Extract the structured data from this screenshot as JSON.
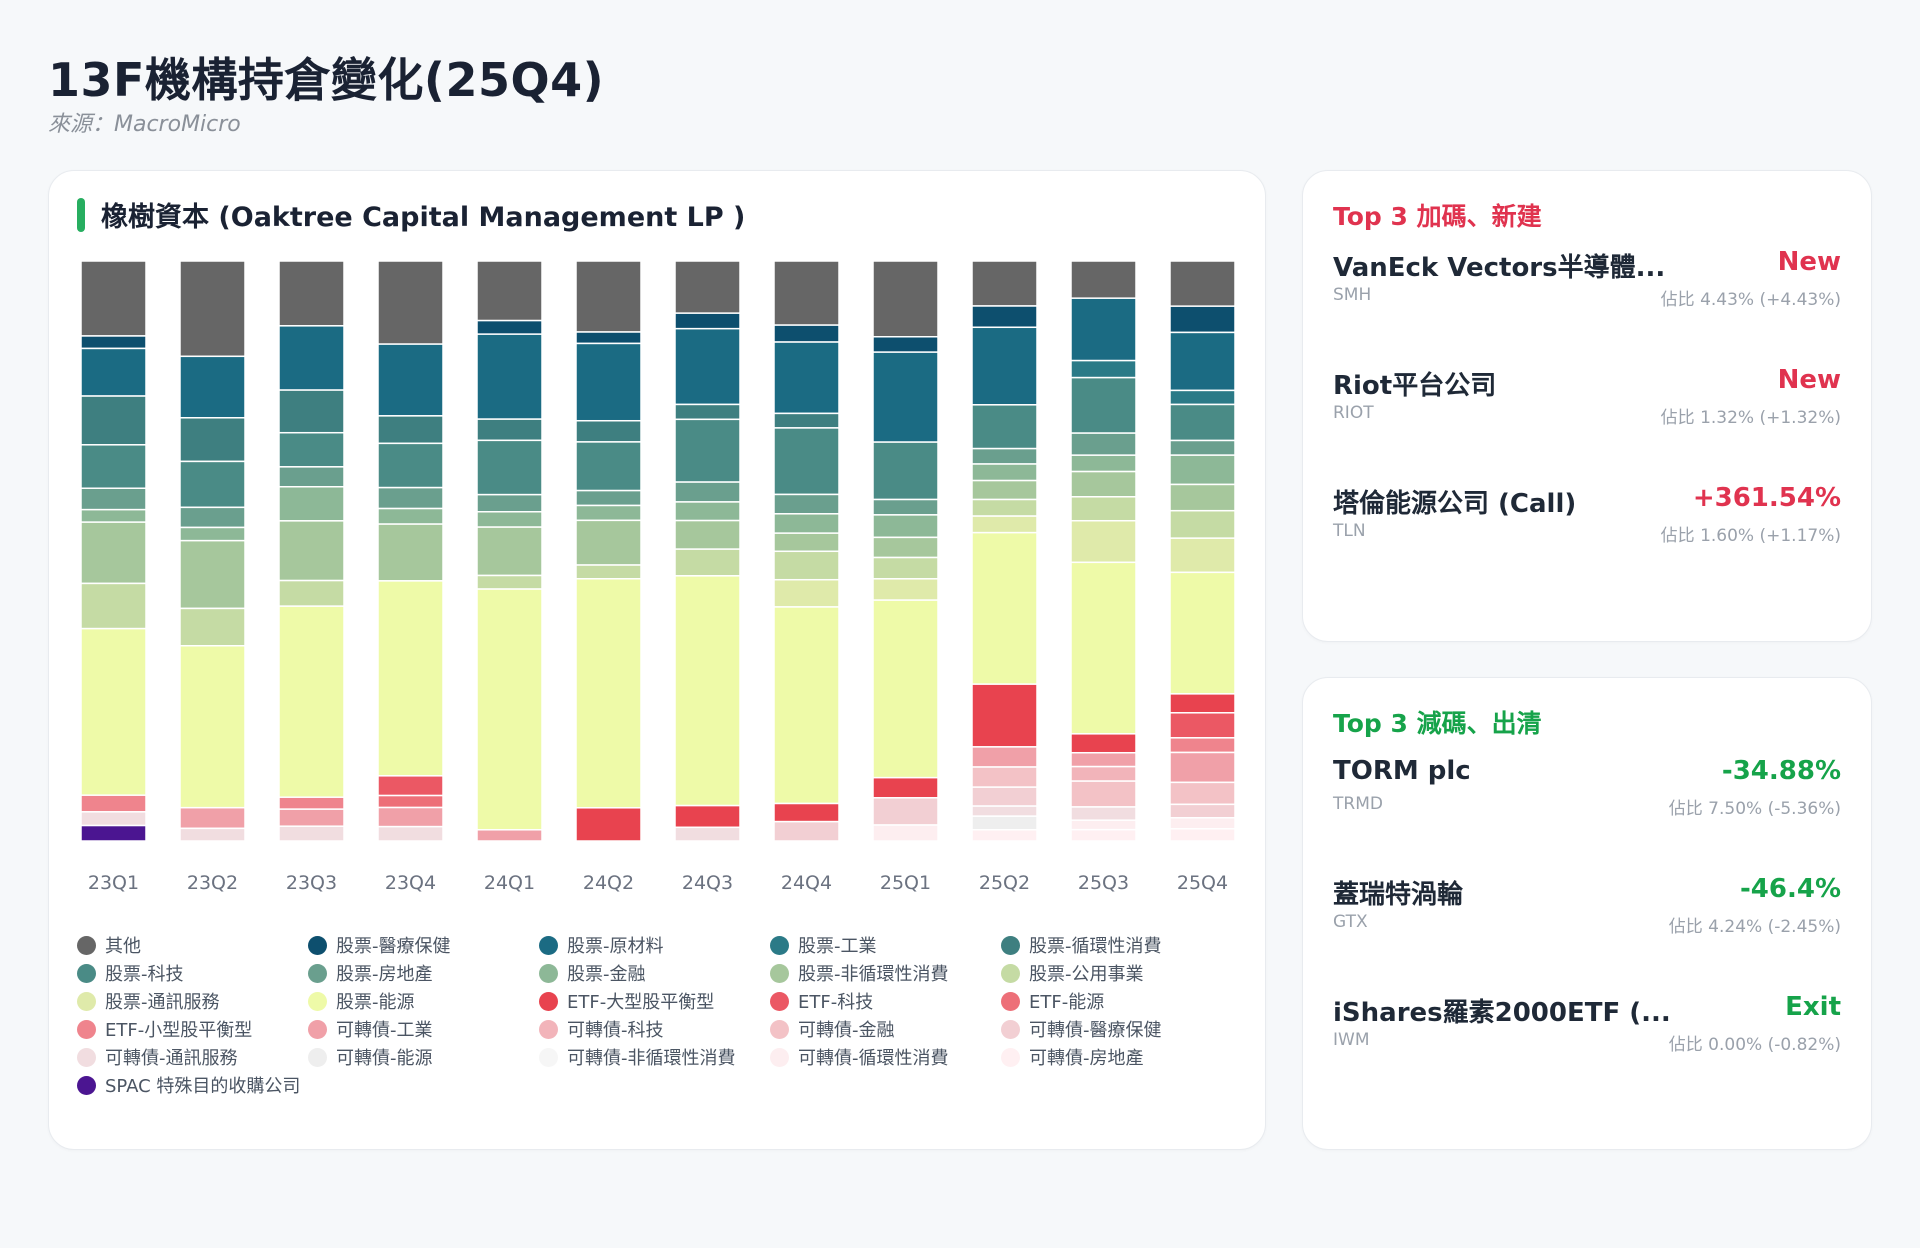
{
  "page": {
    "title": "13F機構持倉變化(25Q4)",
    "source": "來源：MacroMicro"
  },
  "chart_title": "橡樹資本 (Oaktree Capital Management LP )",
  "top_increase": {
    "title": "Top 3 加碼、新建",
    "items": [
      {
        "name": "VanEck Vectors半導體...",
        "ticker": "SMH",
        "change": "New",
        "weight": "佔比 4.43% (+4.43%)"
      },
      {
        "name": "Riot平台公司",
        "ticker": "RIOT",
        "change": "New",
        "weight": "佔比 1.32% (+1.32%)"
      },
      {
        "name": "塔倫能源公司 (Call)",
        "ticker": "TLN",
        "change": "+361.54%",
        "weight": "佔比 1.60% (+1.17%)"
      }
    ]
  },
  "top_decrease": {
    "title": "Top 3 減碼、出清",
    "items": [
      {
        "name": "TORM plc",
        "ticker": "TRMD",
        "change": "-34.88%",
        "weight": "佔比 7.50% (-5.36%)"
      },
      {
        "name": "蓋瑞特渦輪",
        "ticker": "GTX",
        "change": "-46.4%",
        "weight": "佔比 4.24% (-2.45%)"
      },
      {
        "name": "iShares羅素2000ETF (...",
        "ticker": "IWM",
        "change": "Exit",
        "weight": "佔比 0.00% (-0.82%)"
      }
    ]
  },
  "chart_data": {
    "type": "bar",
    "stacked": true,
    "normalized": true,
    "ylim": [
      0,
      100
    ],
    "unit": "%",
    "categories": [
      "23Q1",
      "23Q2",
      "23Q3",
      "23Q4",
      "24Q1",
      "24Q2",
      "24Q3",
      "24Q4",
      "25Q1",
      "25Q2",
      "25Q3",
      "25Q4"
    ],
    "series": [
      {
        "name": "其他",
        "color": "#666666",
        "values": [
          12.6,
          16.6,
          11.4,
          13.9,
          10.1,
          12.4,
          8.4,
          10.6,
          12.8,
          7.6,
          5.9,
          7.4
        ]
      },
      {
        "name": "股票-醫療保健",
        "color": "#0d4f6e",
        "values": [
          2.1,
          0,
          0,
          0,
          2.3,
          2.0,
          2.5,
          2.8,
          2.6,
          3.6,
          0,
          4.3
        ]
      },
      {
        "name": "股票-原材料",
        "color": "#1b6b83",
        "values": [
          8.0,
          10.7,
          11.3,
          12.0,
          14.4,
          13.5,
          12.2,
          11.8,
          15.2,
          13.1,
          9.9,
          9.5
        ]
      },
      {
        "name": "股票-工業",
        "color": "#2b7a87",
        "values": [
          0,
          0,
          0,
          0,
          0,
          0,
          0,
          0,
          0,
          0,
          2.7,
          2.3
        ]
      },
      {
        "name": "股票-循環性消費",
        "color": "#3e7f80",
        "values": [
          8.2,
          7.6,
          7.5,
          4.6,
          3.6,
          3.7,
          2.4,
          2.4,
          0,
          0,
          0,
          0
        ]
      },
      {
        "name": "股票-科技",
        "color": "#4a8b86",
        "values": [
          7.3,
          8.0,
          6.0,
          7.4,
          9.2,
          8.5,
          10.1,
          11.0,
          9.7,
          7.4,
          8.8,
          5.9
        ]
      },
      {
        "name": "股票-房地產",
        "color": "#6a9f8e",
        "values": [
          3.6,
          3.5,
          3.5,
          3.5,
          2.9,
          2.6,
          3.2,
          3.2,
          2.6,
          2.6,
          3.5,
          2.4
        ]
      },
      {
        "name": "股票-金融",
        "color": "#8db897",
        "values": [
          2.1,
          2.3,
          6.0,
          2.6,
          2.6,
          2.6,
          3.0,
          3.2,
          3.8,
          2.8,
          2.6,
          4.8
        ]
      },
      {
        "name": "股票-非循環性消費",
        "color": "#a6c79c",
        "values": [
          10.3,
          11.8,
          10.5,
          9.5,
          8.2,
          7.8,
          4.6,
          3.0,
          3.4,
          3.2,
          4.0,
          4.3
        ]
      },
      {
        "name": "股票-公用事業",
        "color": "#c5dba4",
        "values": [
          7.6,
          6.5,
          4.5,
          0,
          2.3,
          2.4,
          4.3,
          4.7,
          3.6,
          2.8,
          3.8,
          4.5
        ]
      },
      {
        "name": "股票-通訊服務",
        "color": "#dfeaaa",
        "values": [
          0,
          0,
          0,
          0,
          0,
          0,
          0,
          4.5,
          3.6,
          2.8,
          6.6,
          5.6
        ]
      },
      {
        "name": "股票-能源",
        "color": "#eefaa8",
        "values": [
          28.0,
          28.2,
          33.6,
          32.6,
          40.8,
          40.0,
          37.0,
          32.5,
          30.0,
          25.6,
          27.2,
          19.9
        ]
      },
      {
        "name": "ETF-大型股平衡型",
        "color": "#e8434f",
        "values": [
          0,
          0,
          0,
          0,
          0,
          5.8,
          3.5,
          3.0,
          3.4,
          10.6,
          3.0,
          3.1
        ]
      },
      {
        "name": "ETF-科技",
        "color": "#eb5864",
        "values": [
          0,
          0,
          0,
          3.3,
          0,
          0,
          0,
          0,
          0,
          0,
          0,
          4.1
        ]
      },
      {
        "name": "ETF-能源",
        "color": "#ed6f78",
        "values": [
          0,
          0,
          0,
          2.0,
          0,
          0,
          0,
          0,
          0,
          0,
          0,
          0
        ]
      },
      {
        "name": "ETF-小型股平衡型",
        "color": "#ef848d",
        "values": [
          2.8,
          0,
          2.1,
          0,
          0,
          0,
          0,
          0,
          0,
          0,
          0,
          2.4
        ]
      },
      {
        "name": "可轉債-工業",
        "color": "#f0a0a8",
        "values": [
          0,
          3.6,
          3.0,
          3.2,
          1.9,
          0,
          0,
          0,
          0,
          3.4,
          2.2,
          4.9
        ]
      },
      {
        "name": "可轉債-科技",
        "color": "#f2b4ba",
        "values": [
          0,
          0,
          0,
          0,
          0,
          0,
          0,
          0,
          0,
          0,
          2.3,
          0
        ]
      },
      {
        "name": "可轉債-金融",
        "color": "#f3c2c6",
        "values": [
          0,
          0,
          0,
          0,
          0,
          0,
          0,
          0,
          0,
          3.4,
          4.1,
          3.6
        ]
      },
      {
        "name": "可轉債-醫療保健",
        "color": "#f2cfd3",
        "values": [
          0,
          0,
          0,
          0,
          0,
          0,
          0,
          3.2,
          4.6,
          3.2,
          0,
          2.2
        ]
      },
      {
        "name": "可轉債-通訊服務",
        "color": "#f1dde0",
        "values": [
          2.3,
          2.2,
          2.6,
          2.4,
          0,
          0,
          2.2,
          0,
          0,
          1.7,
          2.1,
          0
        ]
      },
      {
        "name": "可轉債-能源",
        "color": "#eeeeee",
        "values": [
          0,
          0,
          0,
          0,
          0,
          0,
          0,
          0,
          0,
          2.3,
          0,
          0
        ]
      },
      {
        "name": "可轉債-非循環性消費",
        "color": "#f6f6f6",
        "values": [
          0,
          0,
          0,
          0,
          0,
          0,
          0,
          0,
          0,
          0,
          0,
          0
        ]
      },
      {
        "name": "可轉債-循環性消費",
        "color": "#fdeef0",
        "values": [
          0,
          0,
          0,
          0,
          0,
          0,
          0,
          0,
          2.7,
          0,
          1.5,
          1.8
        ]
      },
      {
        "name": "可轉債-房地產",
        "color": "#fff0f2",
        "values": [
          0,
          0,
          0,
          0,
          0,
          0,
          0,
          0,
          0,
          1.9,
          1.8,
          2.0
        ]
      },
      {
        "name": "SPAC 特殊目的收購公司",
        "color": "#4b1591",
        "values": [
          2.6,
          0,
          0,
          0,
          0,
          0,
          0,
          0,
          0,
          0,
          0,
          0
        ]
      }
    ]
  }
}
